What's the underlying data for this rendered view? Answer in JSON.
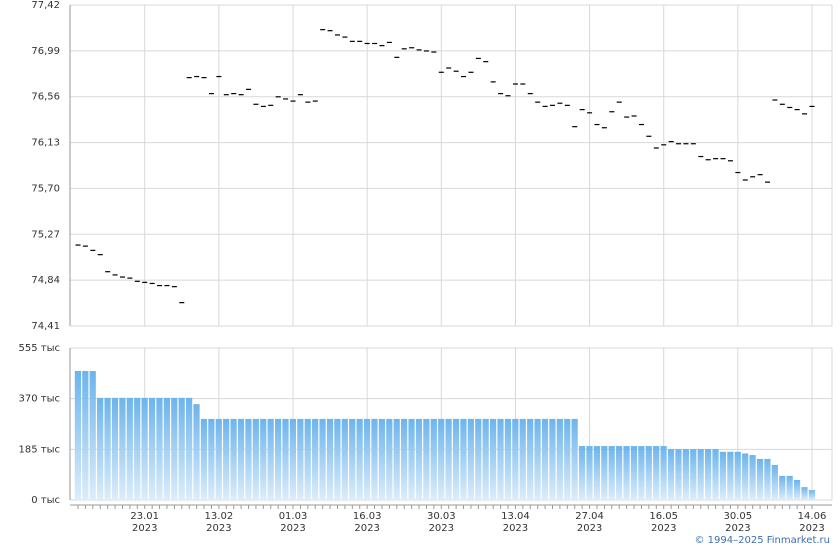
{
  "chart_data": [
    {
      "type": "dash",
      "color": "#000000",
      "grid": true,
      "ylim": [
        74.41,
        77.42
      ],
      "yticks": [
        {
          "value": 74.41,
          "label": "74,41"
        },
        {
          "value": 74.84,
          "label": "74,84"
        },
        {
          "value": 75.27,
          "label": "75,27"
        },
        {
          "value": 75.7,
          "label": "75,70"
        },
        {
          "value": 76.13,
          "label": "76,13"
        },
        {
          "value": 76.56,
          "label": "76,56"
        },
        {
          "value": 76.99,
          "label": "76,99"
        },
        {
          "value": 77.42,
          "label": "77,42"
        }
      ],
      "values": [
        75.17,
        75.16,
        75.12,
        75.08,
        74.92,
        74.89,
        74.87,
        74.86,
        74.83,
        74.82,
        74.81,
        74.79,
        74.79,
        74.78,
        74.63,
        76.74,
        76.75,
        76.74,
        76.59,
        76.75,
        76.58,
        76.59,
        76.58,
        76.63,
        76.49,
        76.47,
        76.48,
        76.56,
        76.54,
        76.52,
        76.58,
        76.51,
        76.52,
        77.19,
        77.18,
        77.14,
        77.12,
        77.08,
        77.08,
        77.06,
        77.06,
        77.04,
        77.07,
        76.93,
        77.01,
        77.02,
        77.0,
        76.99,
        76.98,
        76.79,
        76.83,
        76.8,
        76.75,
        76.79,
        76.92,
        76.89,
        76.7,
        76.59,
        76.57,
        76.68,
        76.68,
        76.59,
        76.51,
        76.47,
        76.48,
        76.5,
        76.48,
        76.28,
        76.44,
        76.41,
        76.3,
        76.27,
        76.42,
        76.51,
        76.37,
        76.38,
        76.3,
        76.19,
        76.08,
        76.11,
        76.14,
        76.12,
        76.12,
        76.12,
        76.0,
        75.97,
        75.98,
        75.98,
        75.96,
        75.85,
        75.78,
        75.81,
        75.83,
        75.76,
        76.53,
        76.49,
        76.46,
        76.44,
        76.4,
        76.47
      ]
    },
    {
      "type": "bar",
      "color": "#6cb4ec",
      "grid": true,
      "ylim": [
        0,
        555
      ],
      "yticks": [
        {
          "value": 0,
          "label": "0 тыс"
        },
        {
          "value": 185,
          "label": "185 тыс"
        },
        {
          "value": 370,
          "label": "370 тыс"
        },
        {
          "value": 555,
          "label": "555 тыс"
        }
      ],
      "categories": [
        null,
        null,
        null,
        null,
        null,
        null,
        null,
        null,
        null,
        "23.01",
        null,
        null,
        null,
        null,
        null,
        null,
        null,
        null,
        null,
        "13.02",
        null,
        null,
        null,
        null,
        null,
        null,
        null,
        null,
        null,
        "01.03",
        null,
        null,
        null,
        null,
        null,
        null,
        null,
        null,
        null,
        "16.03",
        null,
        null,
        null,
        null,
        null,
        null,
        null,
        null,
        null,
        "30.03",
        null,
        null,
        null,
        null,
        null,
        null,
        null,
        null,
        null,
        "13.04",
        null,
        null,
        null,
        null,
        null,
        null,
        null,
        null,
        null,
        "27.04",
        null,
        null,
        null,
        null,
        null,
        null,
        null,
        null,
        null,
        "16.05",
        null,
        null,
        null,
        null,
        null,
        null,
        null,
        null,
        null,
        "30.05",
        null,
        null,
        null,
        null,
        null,
        null,
        null,
        null,
        null,
        "14.06"
      ],
      "category_years": [
        null,
        null,
        null,
        null,
        null,
        null,
        null,
        null,
        null,
        "2023",
        null,
        null,
        null,
        null,
        null,
        null,
        null,
        null,
        null,
        "2023",
        null,
        null,
        null,
        null,
        null,
        null,
        null,
        null,
        null,
        "2023",
        null,
        null,
        null,
        null,
        null,
        null,
        null,
        null,
        null,
        "2023",
        null,
        null,
        null,
        null,
        null,
        null,
        null,
        null,
        null,
        "2023",
        null,
        null,
        null,
        null,
        null,
        null,
        null,
        null,
        null,
        "2023",
        null,
        null,
        null,
        null,
        null,
        null,
        null,
        null,
        null,
        "2023",
        null,
        null,
        null,
        null,
        null,
        null,
        null,
        null,
        null,
        "2023",
        null,
        null,
        null,
        null,
        null,
        null,
        null,
        null,
        null,
        "2023",
        null,
        null,
        null,
        null,
        null,
        null,
        null,
        null,
        null,
        "2023"
      ],
      "values": [
        471,
        471,
        471,
        373,
        373,
        373,
        373,
        373,
        373,
        373,
        373,
        373,
        373,
        373,
        373,
        373,
        350,
        296,
        296,
        296,
        296,
        296,
        296,
        296,
        296,
        296,
        296,
        296,
        296,
        296,
        296,
        296,
        296,
        296,
        296,
        296,
        296,
        296,
        296,
        296,
        296,
        296,
        296,
        296,
        296,
        296,
        296,
        296,
        296,
        296,
        296,
        296,
        296,
        296,
        296,
        296,
        296,
        296,
        296,
        296,
        296,
        296,
        296,
        296,
        296,
        296,
        296,
        296,
        197,
        197,
        197,
        197,
        197,
        197,
        197,
        197,
        197,
        197,
        197,
        197,
        186,
        186,
        186,
        186,
        186,
        186,
        186,
        176,
        176,
        176,
        170,
        164,
        150,
        150,
        128,
        88,
        88,
        73,
        47,
        36
      ]
    }
  ],
  "footer": "© 1994–2025 Finmarket.ru"
}
